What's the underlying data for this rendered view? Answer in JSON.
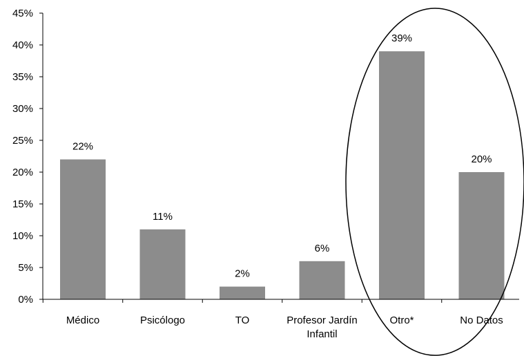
{
  "chart_data": {
    "type": "bar",
    "categories": [
      [
        "Médico"
      ],
      [
        "Psicólogo"
      ],
      [
        "TO"
      ],
      [
        "Profesor Jardín",
        "Infantil"
      ],
      [
        "Otro*"
      ],
      [
        "No Datos"
      ]
    ],
    "values": [
      22,
      11,
      2,
      6,
      39,
      20
    ],
    "value_labels": [
      "22%",
      "11%",
      "2%",
      "6%",
      "39%",
      "20%"
    ],
    "y_ticks": [
      "0%",
      "5%",
      "10%",
      "15%",
      "20%",
      "25%",
      "30%",
      "35%",
      "40%",
      "45%"
    ],
    "ylim": [
      0,
      45
    ],
    "grid": false,
    "legend": "none",
    "annotation": "ellipse around the Otro* and No Datos bars",
    "colors": {
      "bar": "#8c8c8c",
      "axis": "#000000",
      "ellipse": "#000000"
    }
  }
}
